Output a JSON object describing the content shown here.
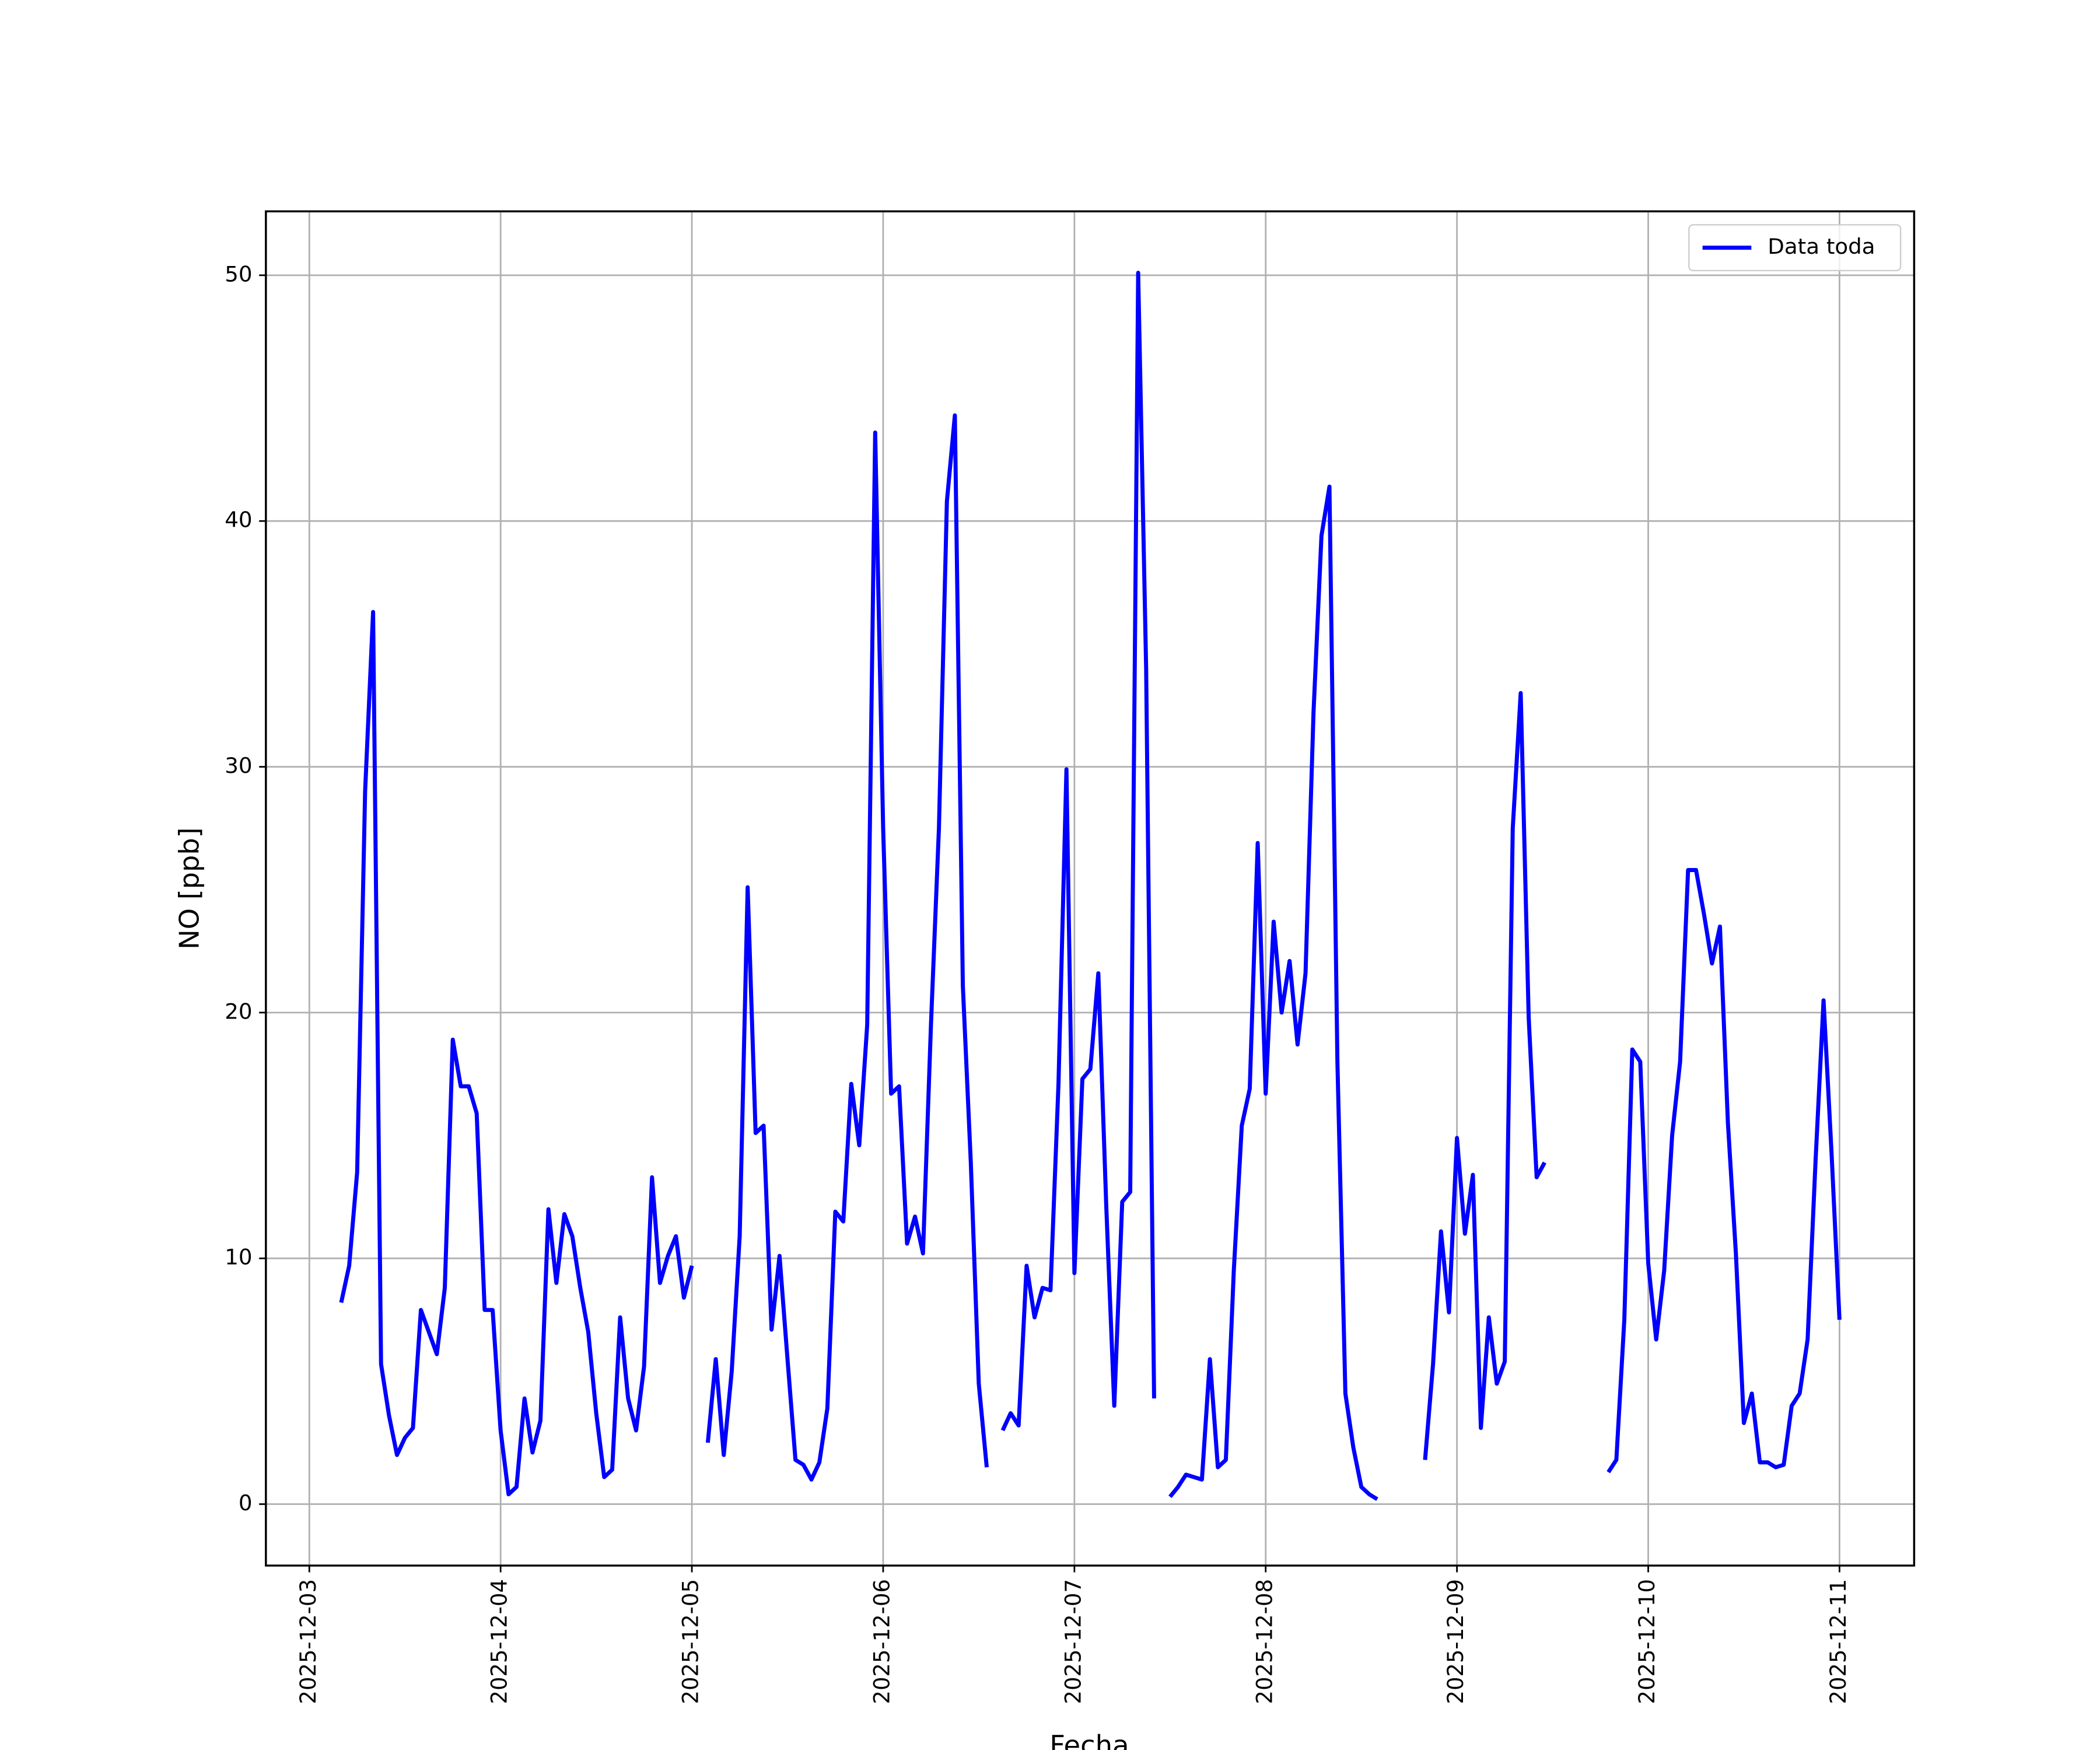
{
  "chart_data": {
    "type": "line",
    "x_label": "Fecha",
    "y_label": "NO [ppb]",
    "x": [
      "2025-12-03 04:00",
      "2025-12-03 05:00",
      "2025-12-03 06:00",
      "2025-12-03 07:00",
      "2025-12-03 08:00",
      "2025-12-03 09:00",
      "2025-12-03 10:00",
      "2025-12-03 11:00",
      "2025-12-03 12:00",
      "2025-12-03 13:00",
      "2025-12-03 14:00",
      "2025-12-03 15:00",
      "2025-12-03 16:00",
      "2025-12-03 17:00",
      "2025-12-03 18:00",
      "2025-12-03 19:00",
      "2025-12-03 20:00",
      "2025-12-03 21:00",
      "2025-12-03 22:00",
      "2025-12-03 23:00",
      "2025-12-04 00:00",
      "2025-12-04 01:00",
      "2025-12-04 02:00",
      "2025-12-04 03:00",
      "2025-12-04 04:00",
      "2025-12-04 05:00",
      "2025-12-04 06:00",
      "2025-12-04 07:00",
      "2025-12-04 08:00",
      "2025-12-04 09:00",
      "2025-12-04 10:00",
      "2025-12-04 11:00",
      "2025-12-04 12:00",
      "2025-12-04 13:00",
      "2025-12-04 14:00",
      "2025-12-04 15:00",
      "2025-12-04 16:00",
      "2025-12-04 17:00",
      "2025-12-04 18:00",
      "2025-12-04 19:00",
      "2025-12-04 20:00",
      "2025-12-04 21:00",
      "2025-12-04 22:00",
      "2025-12-04 23:00",
      "2025-12-05 00:00",
      "2025-12-05 01:00",
      "2025-12-05 02:00",
      "2025-12-05 03:00",
      "2025-12-05 04:00",
      "2025-12-05 05:00",
      "2025-12-05 06:00",
      "2025-12-05 07:00",
      "2025-12-05 08:00",
      "2025-12-05 09:00",
      "2025-12-05 10:00",
      "2025-12-05 11:00",
      "2025-12-05 12:00",
      "2025-12-05 13:00",
      "2025-12-05 14:00",
      "2025-12-05 15:00",
      "2025-12-05 16:00",
      "2025-12-05 17:00",
      "2025-12-05 18:00",
      "2025-12-05 19:00",
      "2025-12-05 20:00",
      "2025-12-05 21:00",
      "2025-12-05 22:00",
      "2025-12-05 23:00",
      "2025-12-06 00:00",
      "2025-12-06 01:00",
      "2025-12-06 02:00",
      "2025-12-06 03:00",
      "2025-12-06 04:00",
      "2025-12-06 05:00",
      "2025-12-06 06:00",
      "2025-12-06 07:00",
      "2025-12-06 08:00",
      "2025-12-06 09:00",
      "2025-12-06 10:00",
      "2025-12-06 11:00",
      "2025-12-06 12:00",
      "2025-12-06 13:00",
      "2025-12-06 14:00",
      "2025-12-06 15:00",
      "2025-12-06 16:00",
      "2025-12-06 17:00",
      "2025-12-06 18:00",
      "2025-12-06 19:00",
      "2025-12-06 20:00",
      "2025-12-06 21:00",
      "2025-12-06 22:00",
      "2025-12-06 23:00",
      "2025-12-07 00:00",
      "2025-12-07 01:00",
      "2025-12-07 02:00",
      "2025-12-07 03:00",
      "2025-12-07 04:00",
      "2025-12-07 05:00",
      "2025-12-07 06:00",
      "2025-12-07 07:00",
      "2025-12-07 08:00",
      "2025-12-07 09:00",
      "2025-12-07 10:00",
      "2025-12-07 11:00",
      "2025-12-07 12:00",
      "2025-12-07 13:00",
      "2025-12-07 14:00",
      "2025-12-07 15:00",
      "2025-12-07 16:00",
      "2025-12-07 17:00",
      "2025-12-07 18:00",
      "2025-12-07 19:00",
      "2025-12-07 20:00",
      "2025-12-07 21:00",
      "2025-12-07 22:00",
      "2025-12-07 23:00",
      "2025-12-08 00:00",
      "2025-12-08 01:00",
      "2025-12-08 02:00",
      "2025-12-08 03:00",
      "2025-12-08 04:00",
      "2025-12-08 05:00",
      "2025-12-08 06:00",
      "2025-12-08 07:00",
      "2025-12-08 08:00",
      "2025-12-08 09:00",
      "2025-12-08 10:00",
      "2025-12-08 11:00",
      "2025-12-08 12:00",
      "2025-12-08 13:00",
      "2025-12-08 14:00",
      "2025-12-08 15:00",
      "2025-12-08 16:00",
      "2025-12-08 17:00",
      "2025-12-08 18:00",
      "2025-12-08 19:00",
      "2025-12-08 20:00",
      "2025-12-08 21:00",
      "2025-12-08 22:00",
      "2025-12-08 23:00",
      "2025-12-09 00:00",
      "2025-12-09 01:00",
      "2025-12-09 02:00",
      "2025-12-09 03:00",
      "2025-12-09 04:00",
      "2025-12-09 05:00",
      "2025-12-09 06:00",
      "2025-12-09 07:00",
      "2025-12-09 08:00",
      "2025-12-09 09:00",
      "2025-12-09 10:00",
      "2025-12-09 11:00",
      "2025-12-09 12:00",
      "2025-12-09 13:00",
      "2025-12-09 14:00",
      "2025-12-09 15:00",
      "2025-12-09 16:00",
      "2025-12-09 17:00",
      "2025-12-09 18:00",
      "2025-12-09 19:00",
      "2025-12-09 20:00",
      "2025-12-09 21:00",
      "2025-12-09 22:00",
      "2025-12-09 23:00",
      "2025-12-10 00:00",
      "2025-12-10 01:00",
      "2025-12-10 02:00",
      "2025-12-10 03:00",
      "2025-12-10 04:00",
      "2025-12-10 05:00",
      "2025-12-10 06:00",
      "2025-12-10 07:00",
      "2025-12-10 08:00",
      "2025-12-10 09:00",
      "2025-12-10 10:00",
      "2025-12-10 11:00",
      "2025-12-10 12:00",
      "2025-12-10 13:00",
      "2025-12-10 14:00",
      "2025-12-10 15:00",
      "2025-12-10 16:00",
      "2025-12-10 17:00",
      "2025-12-10 18:00",
      "2025-12-10 19:00",
      "2025-12-10 20:00",
      "2025-12-10 21:00",
      "2025-12-10 22:00",
      "2025-12-10 23:00",
      "2025-12-11 00:00"
    ],
    "series": [
      {
        "name": "Data toda",
        "color": "#0000ff",
        "values": [
          8.2,
          9.7,
          13.5,
          29,
          36.3,
          5.7,
          3.6,
          2.0,
          2.7,
          3.1,
          7.9,
          7.0,
          6.1,
          8.8,
          18.9,
          17.0,
          17.0,
          15.9,
          7.9,
          7.9,
          3.0,
          0.4,
          0.7,
          4.3,
          2.1,
          3.4,
          12.0,
          9.0,
          11.8,
          10.9,
          8.8,
          7.0,
          3.7,
          1.1,
          1.4,
          7.6,
          4.3,
          3.0,
          5.6,
          13.3,
          9.0,
          10.1,
          10.9,
          8.4,
          9.7,
          null,
          2.5,
          5.9,
          2.0,
          5.4,
          10.9,
          25.1,
          15.1,
          15.4,
          7.1,
          10.1,
          5.9,
          1.8,
          1.6,
          1.0,
          1.7,
          3.9,
          11.9,
          11.5,
          17.1,
          14.6,
          19.5,
          43.6,
          27.5,
          16.7,
          17.0,
          10.6,
          11.7,
          10.2,
          19.5,
          27.5,
          40.8,
          44.3,
          21.1,
          13.9,
          4.9,
          1.5,
          null,
          3.0,
          3.7,
          3.2,
          9.7,
          7.6,
          8.8,
          8.7,
          17.1,
          29.9,
          9.4,
          17.3,
          17.7,
          21.6,
          12.1,
          4.0,
          12.3,
          12.7,
          50.1,
          34.0,
          4.3,
          null,
          0.3,
          0.7,
          1.2,
          1.1,
          1.0,
          5.9,
          1.5,
          1.8,
          9.5,
          15.4,
          16.9,
          26.9,
          16.7,
          23.7,
          20.0,
          22.1,
          18.7,
          21.6,
          32.2,
          39.4,
          41.4,
          18.0,
          4.5,
          2.3,
          0.7,
          0.4,
          0.2,
          null,
          null,
          null,
          null,
          null,
          1.8,
          5.7,
          11.1,
          7.8,
          14.9,
          11.0,
          13.4,
          3.1,
          7.6,
          4.9,
          5.8,
          27.5,
          33.0,
          19.8,
          13.3,
          13.9,
          null,
          null,
          null,
          null,
          null,
          null,
          null,
          1.3,
          1.8,
          7.5,
          18.5,
          18.0,
          9.8,
          6.7,
          9.5,
          15.0,
          18.0,
          25.8,
          25.8,
          24.0,
          22.0,
          23.5,
          15.5,
          10.2,
          3.3,
          4.5,
          1.7,
          1.7,
          1.5,
          1.6,
          4.0,
          4.5,
          6.7,
          14.0,
          20.5,
          14.3,
          7.5
        ]
      }
    ],
    "xlim": [
      "2025-12-02 18:33",
      "2025-12-11 09:22"
    ],
    "xticks": [
      "2025-12-03",
      "2025-12-04",
      "2025-12-05",
      "2025-12-06",
      "2025-12-07",
      "2025-12-08",
      "2025-12-09",
      "2025-12-10",
      "2025-12-11"
    ],
    "ylim": [
      -2.5,
      52.6
    ],
    "yticks": [
      0,
      10,
      20,
      30,
      40,
      50
    ],
    "grid": true,
    "legend": "upper right"
  }
}
